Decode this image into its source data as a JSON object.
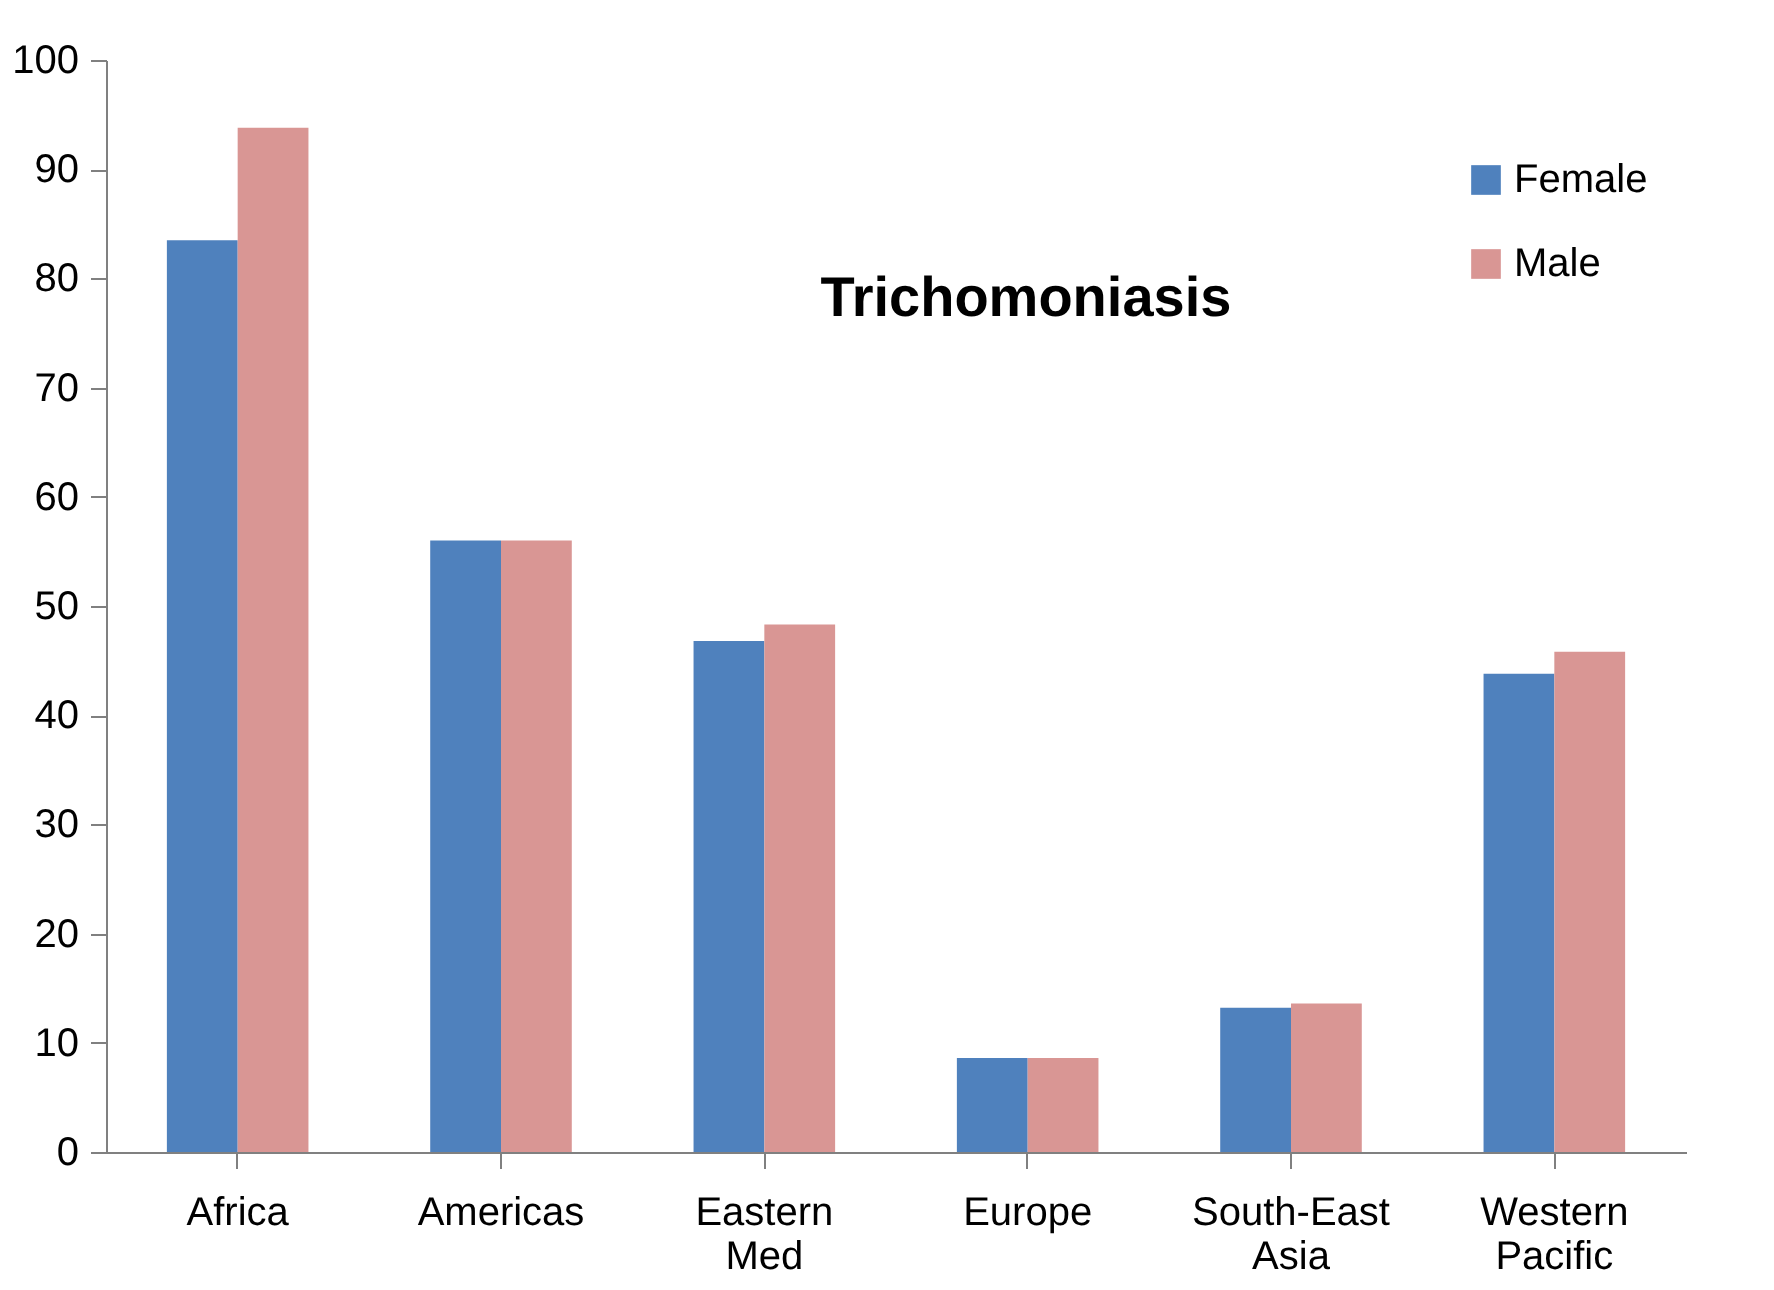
{
  "chart_data": {
    "type": "bar",
    "title": "Trichomoniasis",
    "categories": [
      "Africa",
      "Americas",
      "Eastern Med",
      "Europe",
      "South-East Asia",
      "Western Pacific"
    ],
    "series": [
      {
        "name": "Female",
        "color": "#4f81bd",
        "values": [
          83.5,
          56,
          46.8,
          8.6,
          13.2,
          43.8
        ]
      },
      {
        "name": "Male",
        "color": "#d99694",
        "values": [
          93.8,
          56,
          48.3,
          8.6,
          13.6,
          45.8
        ]
      }
    ],
    "ylim": [
      0,
      100
    ],
    "yticks": [
      0,
      10,
      20,
      30,
      40,
      50,
      60,
      70,
      80,
      90,
      100
    ],
    "grid": false,
    "legend": "top right"
  }
}
